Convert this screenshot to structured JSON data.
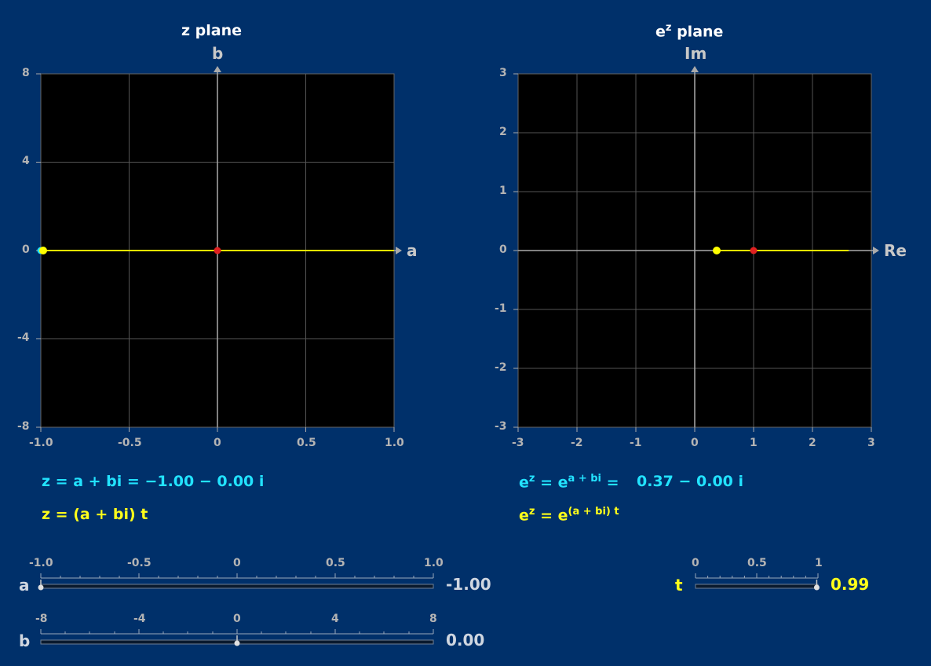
{
  "z_panel": {
    "title": "z plane",
    "x_axis_label": "a",
    "y_axis_label": "b",
    "x_ticks": [
      "-1.0",
      "-0.5",
      "0",
      "0.5",
      "1.0"
    ],
    "y_ticks": [
      "8",
      "4",
      "0",
      "-4",
      "-8"
    ],
    "formula_value": "z = a + bi = −1.00 − 0.00 i",
    "formula_path": "z = (a + bi) t"
  },
  "exp_panel": {
    "title_base": "e",
    "title_sup": "z",
    "title_rest": " plane",
    "x_axis_label": "Re",
    "y_axis_label": "Im",
    "x_ticks": [
      "-3",
      "-2",
      "-1",
      "0",
      "1",
      "2",
      "3"
    ],
    "y_ticks": [
      "3",
      "2",
      "1",
      "0",
      "-1",
      "-2",
      "-3"
    ],
    "formula_value_lhs_base": "e",
    "formula_value_lhs_sup": "z",
    "formula_value_mid": " = e",
    "formula_value_sup": "a + bi",
    "formula_value_eq": " =",
    "formula_value_result": "0.37 − 0.00 i",
    "formula_path_base": "e",
    "formula_path_sup1": "z",
    "formula_path_mid": " = e",
    "formula_path_sup2": "(a + bi) t"
  },
  "sliders": {
    "a": {
      "label": "a",
      "ticks": [
        "-1.0",
        "-0.5",
        "0",
        "0.5",
        "1.0"
      ],
      "value_text": "-1.00",
      "fraction": 0.0
    },
    "b": {
      "label": "b",
      "ticks": [
        "-8",
        "-4",
        "0",
        "4",
        "8"
      ],
      "value_text": "0.00",
      "fraction": 0.5
    },
    "t": {
      "label": "t",
      "ticks": [
        "0",
        "0.5",
        "1"
      ],
      "value_text": "0.99",
      "fraction": 0.99
    }
  },
  "colors": {
    "background": "#00306a",
    "plot_bg": "#000000",
    "path": "#e6e600",
    "point_current": "#ffff00",
    "point_origin": "#e02020",
    "formula_cyan": "#22e3ff",
    "formula_yellow": "#ffff1a"
  }
}
